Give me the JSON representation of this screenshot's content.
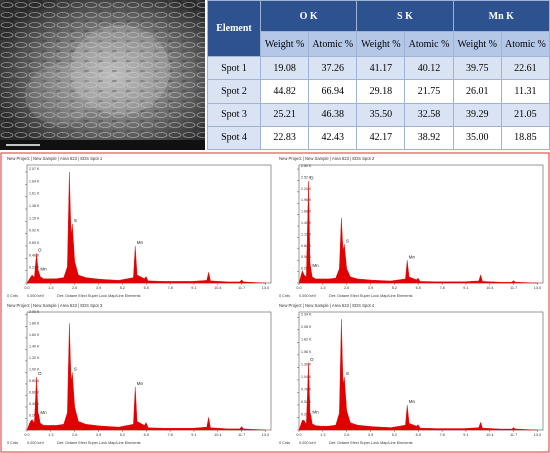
{
  "table": {
    "header": [
      "Element",
      "O K",
      "S K",
      "Mn K"
    ],
    "subheader": [
      "Weight %",
      "Atomic %",
      "Weight %",
      "Atomic %",
      "Weight %",
      "Atomic %"
    ],
    "rows": [
      [
        "Spot 1",
        "19.08",
        "37.26",
        "41.17",
        "40.12",
        "39.75",
        "22.61"
      ],
      [
        "Spot 2",
        "44.82",
        "66.94",
        "29.18",
        "21.75",
        "26.01",
        "11.31"
      ],
      [
        "Spot 3",
        "25.21",
        "46.38",
        "35.50",
        "32.58",
        "39.29",
        "21.05"
      ],
      [
        "Spot 4",
        "22.83",
        "42.43",
        "42.17",
        "38.92",
        "35.00",
        "18.85"
      ]
    ]
  },
  "chart_data": [
    {
      "type": "area",
      "title": "New Project | New Sample | Area 623 | EDS Spot 1",
      "color": "#e00000",
      "x": [
        0.0,
        0.18,
        0.28,
        0.4,
        0.52,
        0.6,
        0.65,
        0.72,
        0.9,
        1.2,
        1.6,
        2.0,
        2.2,
        2.31,
        2.4,
        2.47,
        2.6,
        2.8,
        3.2,
        4.0,
        5.0,
        5.8,
        5.9,
        6.0,
        6.4,
        6.49,
        6.6,
        7.5,
        9.0,
        9.8,
        9.9,
        10.0,
        11.0,
        11.6,
        11.7,
        11.8,
        13.0
      ],
      "values": [
        0,
        0.1,
        0.15,
        0.1,
        0.55,
        0.25,
        0.2,
        0.12,
        0.08,
        0.08,
        0.08,
        0.1,
        0.3,
        2.07,
        0.9,
        1.1,
        0.4,
        0.15,
        0.1,
        0.07,
        0.05,
        0.1,
        0.69,
        0.15,
        0.08,
        0.12,
        0.04,
        0.03,
        0.03,
        0.05,
        0.2,
        0.04,
        0.02,
        0.02,
        0.06,
        0.02,
        0
      ],
      "peak_labels": [
        "O",
        "Mn",
        "S",
        "Mn"
      ],
      "xlim": [
        0,
        13.3
      ],
      "ylim": [
        0,
        2.2
      ],
      "xticks": [
        {
          "value": 0,
          "label": "0.0"
        },
        1.3,
        2.6,
        3.9,
        5.2,
        6.5,
        7.8,
        9.1,
        10.4,
        11.7,
        {
          "value": 13,
          "label": "13.0"
        }
      ],
      "yticks": [
        {
          "value": 0,
          "label": "0.00 K"
        },
        {
          "value": 0.23,
          "label": "0.23 K"
        },
        {
          "value": 0.46,
          "label": "0.46 K"
        },
        {
          "value": 0.69,
          "label": "0.69 K"
        },
        {
          "value": 0.92,
          "label": "0.92 K"
        },
        {
          "value": 1.15,
          "label": "1.15 K"
        },
        {
          "value": 1.38,
          "label": "1.38 K"
        },
        {
          "value": 1.61,
          "label": "1.61 K"
        },
        {
          "value": 1.84,
          "label": "1.84 K"
        },
        {
          "value": 2.07,
          "label": "2.07 K"
        }
      ],
      "footer": [
        "0 Cnts",
        "0.000 keV",
        "Det: Octane Elect Super Lock Map/Line Elements"
      ]
    },
    {
      "type": "area",
      "title": "New Project | New Sample | Area 623 | EDS Spot 2",
      "color": "#e00000",
      "x": [
        0.0,
        0.18,
        0.28,
        0.4,
        0.52,
        0.6,
        0.65,
        0.72,
        0.9,
        1.2,
        1.6,
        2.0,
        2.2,
        2.31,
        2.4,
        2.47,
        2.6,
        2.8,
        3.2,
        4.0,
        5.0,
        5.8,
        5.9,
        6.0,
        6.4,
        6.49,
        6.6,
        7.5,
        9.0,
        9.8,
        9.9,
        10.0,
        11.0,
        11.6,
        11.7,
        11.8,
        13.0
      ],
      "values": [
        0,
        0.3,
        0.2,
        0.15,
        2.5,
        0.5,
        0.35,
        0.15,
        0.1,
        0.1,
        0.1,
        0.12,
        0.35,
        1.6,
        0.8,
        0.95,
        0.35,
        0.15,
        0.1,
        0.07,
        0.05,
        0.1,
        0.56,
        0.15,
        0.08,
        0.12,
        0.04,
        0.03,
        0.03,
        0.05,
        0.2,
        0.04,
        0.02,
        0.02,
        0.06,
        0.02,
        0
      ],
      "peak_labels": [
        "O",
        "Mn",
        "S",
        "Mn"
      ],
      "xlim": [
        0,
        13.3
      ],
      "ylim": [
        0,
        2.9
      ],
      "xticks": [
        {
          "value": 0,
          "label": "0.0"
        },
        1.3,
        2.6,
        3.9,
        5.2,
        6.5,
        7.8,
        9.1,
        10.4,
        11.7,
        {
          "value": 13,
          "label": "13.0"
        }
      ],
      "yticks": [
        {
          "value": 0,
          "label": "0.00 K"
        },
        {
          "value": 0.28,
          "label": "0.28 K"
        },
        {
          "value": 0.56,
          "label": "0.56 K"
        },
        {
          "value": 0.84,
          "label": "0.84 K"
        },
        {
          "value": 1.12,
          "label": "1.12 K"
        },
        {
          "value": 1.4,
          "label": "1.40 K"
        },
        {
          "value": 1.68,
          "label": "1.68 K"
        },
        {
          "value": 1.96,
          "label": "1.96 K"
        },
        {
          "value": 2.24,
          "label": "2.24 K"
        },
        {
          "value": 2.52,
          "label": "2.52 K"
        },
        {
          "value": 2.8,
          "label": "2.80 K"
        }
      ],
      "footer": [
        "0 Cnts",
        "0.000 keV",
        "Det: Octane Elect Super Lock Map/Line Elements"
      ]
    },
    {
      "type": "area",
      "title": "New Project | New Sample | Area 623 | EDS Spot 3",
      "color": "#e00000",
      "x": [
        0.0,
        0.18,
        0.28,
        0.4,
        0.52,
        0.6,
        0.65,
        0.72,
        0.9,
        1.2,
        1.6,
        2.0,
        2.2,
        2.31,
        2.4,
        2.47,
        2.6,
        2.8,
        3.2,
        4.0,
        5.0,
        5.8,
        5.9,
        6.0,
        6.4,
        6.49,
        6.6,
        7.5,
        9.0,
        9.8,
        9.9,
        10.0,
        11.0,
        11.6,
        11.7,
        11.8,
        13.0
      ],
      "values": [
        0,
        0.15,
        0.18,
        0.12,
        0.92,
        0.3,
        0.25,
        0.12,
        0.08,
        0.08,
        0.08,
        0.1,
        0.3,
        1.85,
        0.85,
        1.0,
        0.4,
        0.15,
        0.1,
        0.07,
        0.05,
        0.1,
        0.75,
        0.15,
        0.08,
        0.13,
        0.04,
        0.03,
        0.03,
        0.05,
        0.22,
        0.04,
        0.02,
        0.02,
        0.06,
        0.02,
        0
      ],
      "peak_labels": [
        "O",
        "Mn",
        "S",
        "Mn"
      ],
      "xlim": [
        0,
        13.3
      ],
      "ylim": [
        0,
        2.05
      ],
      "xticks": [
        {
          "value": 0,
          "label": "0.0"
        },
        1.3,
        2.6,
        3.9,
        5.2,
        6.5,
        7.8,
        9.1,
        10.4,
        11.7,
        {
          "value": 13,
          "label": "13.0"
        }
      ],
      "yticks": [
        {
          "value": 0,
          "label": "0.00 K"
        },
        {
          "value": 0.2,
          "label": "0.20 K"
        },
        {
          "value": 0.4,
          "label": "0.40 K"
        },
        {
          "value": 0.6,
          "label": "0.60 K"
        },
        {
          "value": 0.8,
          "label": "0.80 K"
        },
        {
          "value": 1,
          "label": "1.00 K"
        },
        {
          "value": 1.2,
          "label": "1.20 K"
        },
        {
          "value": 1.4,
          "label": "1.40 K"
        },
        {
          "value": 1.6,
          "label": "1.60 K"
        },
        {
          "value": 1.8,
          "label": "1.80 K"
        },
        {
          "value": 2,
          "label": "2.00 K"
        }
      ],
      "footer": [
        "0 Cnts",
        "0.000 keV",
        "Det: Octane Elect Super Lock Map/Line Elements"
      ]
    },
    {
      "type": "area",
      "title": "New Project | New Sample | Area 623 | EDS Spot 4",
      "color": "#e00000",
      "x": [
        0.0,
        0.18,
        0.28,
        0.4,
        0.52,
        0.6,
        0.65,
        0.72,
        0.9,
        1.2,
        1.6,
        2.0,
        2.2,
        2.31,
        2.4,
        2.47,
        2.6,
        2.8,
        3.2,
        4.0,
        5.0,
        5.8,
        5.9,
        6.0,
        6.4,
        6.49,
        6.6,
        7.5,
        9.0,
        9.8,
        9.9,
        10.0,
        11.0,
        11.6,
        11.7,
        11.8,
        13.0
      ],
      "values": [
        0,
        0.2,
        0.2,
        0.12,
        1.4,
        0.35,
        0.3,
        0.13,
        0.09,
        0.08,
        0.08,
        0.1,
        0.35,
        2.3,
        0.95,
        1.1,
        0.4,
        0.15,
        0.1,
        0.07,
        0.05,
        0.1,
        0.52,
        0.14,
        0.08,
        0.11,
        0.04,
        0.03,
        0.03,
        0.05,
        0.16,
        0.04,
        0.02,
        0.02,
        0.05,
        0.02,
        0
      ],
      "peak_labels": [
        "O",
        "Mn",
        "S",
        "Mn"
      ],
      "xlim": [
        0,
        13.3
      ],
      "ylim": [
        0,
        2.45
      ],
      "xticks": [
        {
          "value": 0,
          "label": "0.0"
        },
        1.3,
        2.6,
        3.9,
        5.2,
        6.5,
        7.8,
        9.1,
        10.4,
        11.7,
        {
          "value": 13,
          "label": "13.0"
        }
      ],
      "yticks": [
        {
          "value": 0,
          "label": "0.00 K"
        },
        {
          "value": 0.26,
          "label": "0.26 K"
        },
        {
          "value": 0.52,
          "label": "0.52 K"
        },
        {
          "value": 0.78,
          "label": "0.78 K"
        },
        {
          "value": 1.04,
          "label": "1.04 K"
        },
        {
          "value": 1.3,
          "label": "1.30 K"
        },
        {
          "value": 1.56,
          "label": "1.56 K"
        },
        {
          "value": 1.82,
          "label": "1.82 K"
        },
        {
          "value": 2.08,
          "label": "2.08 K"
        },
        {
          "value": 2.34,
          "label": "2.34 K"
        }
      ],
      "footer": [
        "0 Cnts",
        "0.000 keV",
        "Det: Octane Elect Super Lock Map/Line Elements"
      ]
    }
  ]
}
